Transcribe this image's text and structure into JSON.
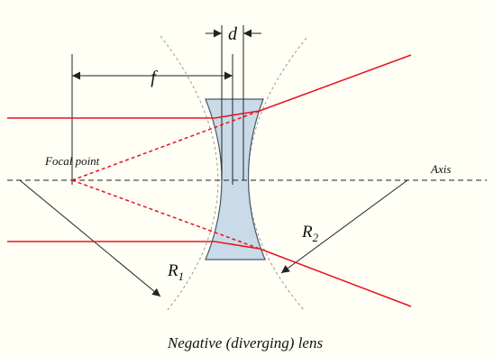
{
  "diagram": {
    "caption": "Negative (diverging) lens",
    "labels": {
      "thickness": "d",
      "focal_length": "f",
      "focal_point": "Focal point",
      "axis": "Axis",
      "radius_1_symbol": "R",
      "radius_1_subscript": "1",
      "radius_2_symbol": "R",
      "radius_2_subscript": "2"
    },
    "colors": {
      "ray": "#e8141d",
      "lens_fill": "#c9dbe8",
      "lens_stroke": "#4a5866",
      "line": "#333333",
      "background": "#fffff6"
    }
  }
}
